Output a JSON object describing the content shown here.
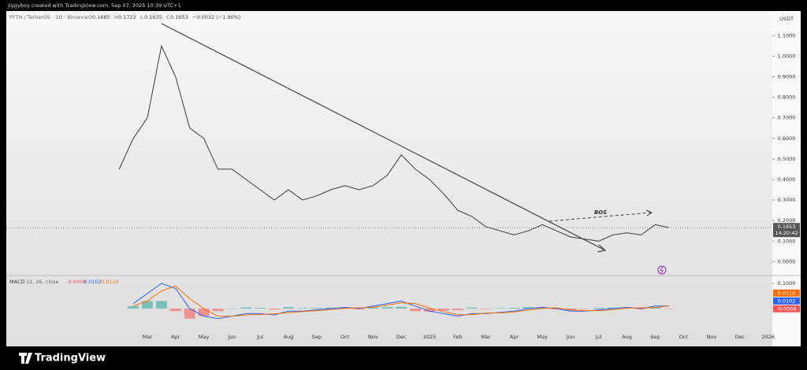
{
  "chart_data": {
    "type": "line",
    "title": "jiggyboy created with TradingView.com, Sep 07, 2025 10:39 UTC+1",
    "symbol": "PYTH / TetherUS · 1D · Binance",
    "ohlc": [
      "O",
      "0.1685",
      "H",
      "0.1722",
      "L",
      "0.1635",
      "C",
      "0.1653",
      "−0.0032 (−1.90%)"
    ],
    "unit": "USDT",
    "annotation": "BOS",
    "last_price": 0.1653,
    "countdown": "14:20:42",
    "brand": "TradingView",
    "categories": [
      null,
      null,
      "Mar",
      null,
      "Apr",
      null,
      "May",
      null,
      "Jun",
      null,
      "Jul",
      null,
      "Aug",
      null,
      "Sep",
      null,
      "Oct",
      null,
      "Nov",
      null,
      "Dec",
      null,
      "2025",
      null,
      "Feb",
      null,
      "Mar",
      null,
      "Apr",
      null,
      "May",
      null,
      "Jun",
      null,
      "Jul",
      null,
      "Aug",
      null,
      "Sep",
      null,
      "Oct",
      null,
      "Nov",
      null,
      "Dec",
      null,
      "2026"
    ],
    "series": [
      {
        "color": "#3a3a3a",
        "values": [
          0.45,
          0.6,
          0.7,
          1.05,
          0.9,
          0.65,
          0.6,
          0.45,
          0.45,
          0.4,
          0.35,
          0.3,
          0.35,
          0.3,
          0.32,
          0.35,
          0.37,
          0.35,
          0.37,
          0.42,
          0.52,
          0.45,
          0.4,
          0.33,
          0.25,
          0.22,
          0.17,
          0.15,
          0.13,
          0.15,
          0.18,
          0.15,
          0.12,
          0.11,
          0.1,
          0.13,
          0.14,
          0.13,
          0.18,
          0.1653,
          null,
          null,
          null,
          null,
          null,
          null,
          null
        ]
      }
    ],
    "ylim": [
      -0.06,
      1.22
    ],
    "yticks": [
      {
        "value": 1.1,
        "label": "1.1000"
      },
      {
        "value": 1.0,
        "label": "1.0000"
      },
      {
        "value": 0.9,
        "label": "0.9000"
      },
      {
        "value": 0.8,
        "label": "0.8000"
      },
      {
        "value": 0.7,
        "label": "0.7000"
      },
      {
        "value": 0.6,
        "label": "0.6000"
      },
      {
        "value": 0.5,
        "label": "0.5000"
      },
      {
        "value": 0.4,
        "label": "0.4000"
      },
      {
        "value": 0.3,
        "label": "0.3000"
      },
      {
        "value": 0.2,
        "label": "0.2000"
      },
      {
        "value": 0.1,
        "label": "0.1000"
      },
      {
        "value": 0.0,
        "label": "0.0000"
      }
    ],
    "indicator": {
      "title": "MACD",
      "params": "12, 26, close",
      "ylim": [
        -0.1,
        0.125
      ],
      "yticks": [
        {
          "value": 0.1,
          "label": "0.1000"
        }
      ],
      "series": [
        {
          "type": "bar",
          "color": "#26a69a",
          "negative_color": "#ff5252",
          "last": -0.0008,
          "values": [
            null,
            0.01,
            0.03,
            0.03,
            -0.01,
            -0.04,
            -0.03,
            -0.01,
            0.0,
            0.005,
            0.003,
            -0.004,
            0.006,
            0.002,
            0.003,
            0.004,
            0.004,
            -0.003,
            0.005,
            0.006,
            0.007,
            -0.01,
            -0.012,
            -0.008,
            -0.006,
            0.004,
            -0.002,
            0.002,
            0.003,
            0.006,
            0.004,
            -0.003,
            -0.005,
            -0.002,
            0.003,
            0.004,
            0.003,
            -0.003,
            0.006,
            -0.0008,
            null,
            null,
            null,
            null,
            null,
            null,
            null
          ]
        },
        {
          "type": "line",
          "color": "#2962ff",
          "last": 0.0102,
          "values": [
            null,
            0.02,
            0.06,
            0.1,
            0.08,
            0.0,
            -0.03,
            -0.04,
            -0.03,
            -0.02,
            -0.02,
            -0.025,
            -0.01,
            -0.01,
            -0.005,
            0.0,
            0.005,
            0.0,
            0.01,
            0.02,
            0.03,
            0.01,
            -0.01,
            -0.02,
            -0.03,
            -0.02,
            -0.02,
            -0.015,
            -0.01,
            0.0,
            0.005,
            0.0,
            -0.01,
            -0.01,
            -0.005,
            0.0,
            0.005,
            0.0,
            0.0102,
            0.0102,
            null,
            null,
            null,
            null,
            null,
            null,
            null
          ]
        },
        {
          "type": "line",
          "color": "#ff6d00",
          "last": {
            "value": 0.011,
            "label": "0.0110"
          },
          "values": [
            null,
            0.01,
            0.03,
            0.07,
            0.09,
            0.04,
            0.0,
            -0.03,
            -0.03,
            -0.025,
            -0.023,
            -0.021,
            -0.016,
            -0.012,
            -0.008,
            -0.004,
            0.001,
            0.003,
            0.005,
            0.014,
            0.023,
            0.02,
            0.002,
            -0.012,
            -0.024,
            -0.024,
            -0.018,
            -0.017,
            -0.013,
            -0.006,
            0.001,
            0.003,
            -0.005,
            -0.008,
            -0.008,
            -0.004,
            0.002,
            0.003,
            0.004,
            0.011,
            null,
            null,
            null,
            null,
            null,
            null,
            null
          ]
        }
      ]
    }
  }
}
